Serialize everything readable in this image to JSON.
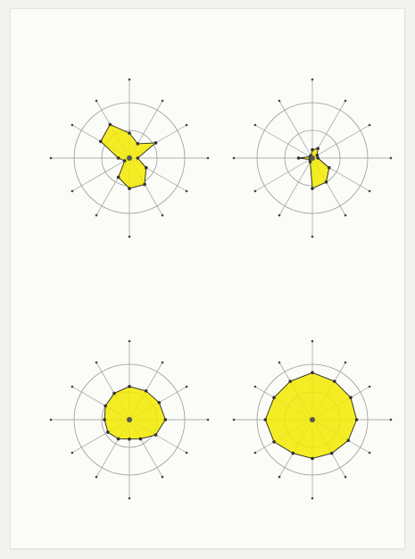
{
  "page": {
    "background": "#f3f3f1",
    "sheet": "#fbfbf8",
    "fill_color": "#f2ea00",
    "line_color": "#222222",
    "ring_color": "#9a9a9a"
  },
  "chart_data": [
    {
      "type": "radar",
      "title": "",
      "subtitle": "",
      "axes": [
        "",
        "",
        "",
        "",
        "",
        "",
        "",
        "",
        "",
        "",
        "",
        ""
      ],
      "rlim": [
        0,
        1
      ],
      "rings": [
        0.5,
        1.0
      ],
      "series": [
        {
          "values": [
            0.45,
            0.3,
            0.55,
            0.15,
            0.35,
            0.55,
            0.55,
            0.4,
            0.1,
            0.2,
            0.6,
            0.7
          ]
        }
      ],
      "grid": true,
      "legend": "none"
    },
    {
      "type": "radar",
      "title": "",
      "subtitle": "",
      "axes": [
        "",
        "",
        "",
        "",
        "",
        "",
        "",
        "",
        "",
        "",
        "",
        ""
      ],
      "rlim": [
        0,
        1
      ],
      "rings": [
        0.5,
        1.0
      ],
      "series": [
        {
          "values": [
            0.15,
            0.2,
            0.1,
            0.1,
            0.35,
            0.5,
            0.55,
            0.08,
            0.05,
            0.25,
            0.05,
            0.05
          ]
        }
      ],
      "grid": true,
      "legend": "none"
    },
    {
      "type": "radar",
      "title": "",
      "subtitle": "",
      "axes": [
        "",
        "",
        "",
        "",
        "",
        "",
        "",
        "",
        "",
        "",
        "",
        ""
      ],
      "rlim": [
        0,
        1
      ],
      "rings": [
        0.5,
        1.0
      ],
      "series": [
        {
          "values": [
            0.6,
            0.6,
            0.62,
            0.65,
            0.55,
            0.4,
            0.35,
            0.4,
            0.45,
            0.45,
            0.5,
            0.55
          ]
        }
      ],
      "grid": true,
      "legend": "none"
    },
    {
      "type": "radar",
      "title": "",
      "subtitle": "",
      "axes": [
        "",
        "",
        "",
        "",
        "",
        "",
        "",
        "",
        "",
        "",
        "",
        ""
      ],
      "rlim": [
        0,
        1
      ],
      "rings": [
        0.5,
        1.0
      ],
      "series": [
        {
          "values": [
            0.85,
            0.8,
            0.8,
            0.8,
            0.75,
            0.7,
            0.7,
            0.7,
            0.8,
            0.85,
            0.8,
            0.8
          ]
        }
      ],
      "grid": true,
      "legend": "none"
    }
  ]
}
